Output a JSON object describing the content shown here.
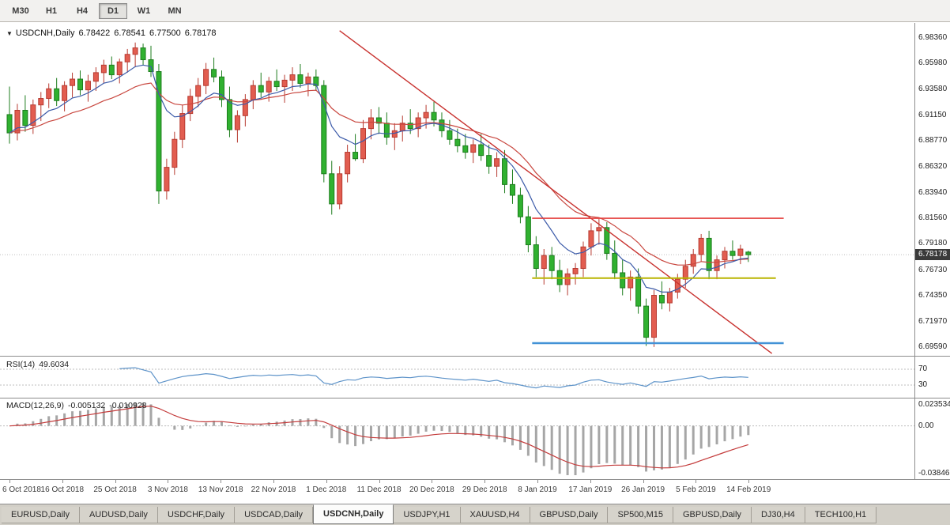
{
  "toolbar": {
    "buttons": [
      "M30",
      "H1",
      "H4",
      "D1",
      "W1",
      "MN"
    ],
    "active": "D1"
  },
  "chart_header": {
    "dropdown_icon": "▼",
    "symbol": "USDCNH,Daily",
    "open": "6.78422",
    "high": "6.78541",
    "low": "6.77500",
    "close": "6.78178"
  },
  "active_tab_index": 4,
  "tabs": [
    "EURUSD,Daily",
    "AUDUSD,Daily",
    "USDCHF,Daily",
    "USDCAD,Daily",
    "USDCNH,Daily",
    "USDJPY,H1",
    "XAUUSD,H4",
    "GBPUSD,Daily",
    "SP500,M15",
    "GBPUSD,Daily",
    "DJ30,H4",
    "TECH100,H1"
  ],
  "colors": {
    "bull": "#e25d50",
    "bull_border": "#b73b31",
    "bear": "#30b130",
    "bear_border": "#1e7d1e",
    "ma_fast": "#3c5ba9",
    "ma_slow": "#c94840",
    "trendline": "#c8322f",
    "resistance": "#e43c39",
    "support_mid": "#b9b400",
    "support_low": "#4292d6",
    "rsi_line": "#5d93c9",
    "macd_hist": "#a6a6a6",
    "macd_signal": "#c43c3c",
    "price_line": "#bdbdbd"
  },
  "chart_data": [
    {
      "type": "candlestick",
      "symbol": "USDCNH",
      "timeframe": "Daily",
      "ylim": [
        6.6878,
        6.995
      ],
      "y_ticks": [
        6.9836,
        6.9598,
        6.9358,
        6.9115,
        6.8877,
        6.8632,
        6.8394,
        6.8156,
        6.7918,
        6.7673,
        6.7435,
        6.7197,
        6.6959
      ],
      "x_labels": [
        "6 Oct 2018",
        "16 Oct 2018",
        "25 Oct 2018",
        "3 Nov 2018",
        "13 Nov 2018",
        "22 Nov 2018",
        "1 Dec 2018",
        "11 Dec 2018",
        "20 Dec 2018",
        "29 Dec 2018",
        "8 Jan 2019",
        "17 Jan 2019",
        "26 Jan 2019",
        "5 Feb 2019",
        "14 Feb 2019"
      ],
      "last_price": 6.78178,
      "last_price_label": "6.78178",
      "ohlc": [
        [
          6.912,
          6.938,
          6.885,
          6.895
        ],
        [
          6.895,
          6.922,
          6.888,
          6.916
        ],
        [
          6.916,
          6.93,
          6.896,
          6.902
        ],
        [
          6.902,
          6.926,
          6.894,
          6.921
        ],
        [
          6.921,
          6.933,
          6.906,
          6.927
        ],
        [
          6.927,
          6.941,
          6.918,
          6.936
        ],
        [
          6.936,
          6.946,
          6.92,
          6.925
        ],
        [
          6.925,
          6.943,
          6.915,
          6.939
        ],
        [
          6.939,
          6.951,
          6.928,
          6.945
        ],
        [
          6.945,
          6.953,
          6.93,
          6.935
        ],
        [
          6.935,
          6.949,
          6.924,
          6.943
        ],
        [
          6.943,
          6.956,
          6.934,
          6.951
        ],
        [
          6.951,
          6.963,
          6.941,
          6.958
        ],
        [
          6.958,
          6.966,
          6.945,
          6.949
        ],
        [
          6.949,
          6.964,
          6.941,
          6.961
        ],
        [
          6.961,
          6.973,
          6.951,
          6.968
        ],
        [
          6.968,
          6.979,
          6.956,
          6.974
        ],
        [
          6.974,
          6.978,
          6.958,
          6.963
        ],
        [
          6.963,
          6.976,
          6.947,
          6.952
        ],
        [
          6.952,
          6.959,
          6.829,
          6.841
        ],
        [
          6.841,
          6.871,
          6.833,
          6.863
        ],
        [
          6.863,
          6.896,
          6.856,
          6.889
        ],
        [
          6.889,
          6.921,
          6.881,
          6.913
        ],
        [
          6.913,
          6.936,
          6.906,
          6.929
        ],
        [
          6.929,
          6.946,
          6.919,
          6.939
        ],
        [
          6.939,
          6.96,
          6.931,
          6.954
        ],
        [
          6.954,
          6.965,
          6.942,
          6.947
        ],
        [
          6.947,
          6.953,
          6.919,
          6.926
        ],
        [
          6.926,
          6.938,
          6.891,
          6.898
        ],
        [
          6.898,
          6.916,
          6.886,
          6.911
        ],
        [
          6.911,
          6.931,
          6.901,
          6.926
        ],
        [
          6.926,
          6.944,
          6.917,
          6.939
        ],
        [
          6.939,
          6.951,
          6.928,
          6.933
        ],
        [
          6.933,
          6.947,
          6.924,
          6.943
        ],
        [
          6.943,
          6.954,
          6.934,
          6.938
        ],
        [
          6.938,
          6.949,
          6.923,
          6.944
        ],
        [
          6.944,
          6.956,
          6.934,
          6.949
        ],
        [
          6.949,
          6.959,
          6.937,
          6.941
        ],
        [
          6.941,
          6.951,
          6.929,
          6.947
        ],
        [
          6.947,
          6.954,
          6.934,
          6.939
        ],
        [
          6.939,
          6.944,
          6.849,
          6.857
        ],
        [
          6.857,
          6.869,
          6.819,
          6.829
        ],
        [
          6.829,
          6.864,
          6.824,
          6.857
        ],
        [
          6.857,
          6.884,
          6.849,
          6.877
        ],
        [
          6.877,
          6.894,
          6.869,
          6.871
        ],
        [
          6.871,
          6.907,
          6.867,
          6.899
        ],
        [
          6.899,
          6.917,
          6.889,
          6.909
        ],
        [
          6.909,
          6.919,
          6.894,
          6.904
        ],
        [
          6.904,
          6.914,
          6.884,
          6.891
        ],
        [
          6.891,
          6.904,
          6.879,
          6.897
        ],
        [
          6.897,
          6.911,
          6.887,
          6.904
        ],
        [
          6.904,
          6.917,
          6.894,
          6.899
        ],
        [
          6.899,
          6.914,
          6.891,
          6.909
        ],
        [
          6.909,
          6.921,
          6.899,
          6.914
        ],
        [
          6.914,
          6.924,
          6.901,
          6.907
        ],
        [
          6.907,
          6.914,
          6.891,
          6.897
        ],
        [
          6.897,
          6.907,
          6.884,
          6.889
        ],
        [
          6.889,
          6.899,
          6.877,
          6.883
        ],
        [
          6.883,
          6.894,
          6.871,
          6.877
        ],
        [
          6.877,
          6.889,
          6.867,
          6.884
        ],
        [
          6.884,
          6.894,
          6.869,
          6.874
        ],
        [
          6.874,
          6.884,
          6.857,
          6.864
        ],
        [
          6.864,
          6.877,
          6.854,
          6.871
        ],
        [
          6.871,
          6.879,
          6.839,
          6.847
        ],
        [
          6.847,
          6.861,
          6.829,
          6.837
        ],
        [
          6.837,
          6.844,
          6.811,
          6.817
        ],
        [
          6.817,
          6.827,
          6.784,
          6.791
        ],
        [
          6.791,
          6.799,
          6.761,
          6.769
        ],
        [
          6.769,
          6.787,
          6.754,
          6.781
        ],
        [
          6.781,
          6.789,
          6.759,
          6.767
        ],
        [
          6.767,
          6.777,
          6.747,
          6.754
        ],
        [
          6.754,
          6.769,
          6.744,
          6.764
        ],
        [
          6.764,
          6.774,
          6.754,
          6.769
        ],
        [
          6.769,
          6.794,
          6.761,
          6.789
        ],
        [
          6.789,
          6.811,
          6.781,
          6.804
        ],
        [
          6.804,
          6.815,
          6.791,
          6.807
        ],
        [
          6.807,
          6.812,
          6.777,
          6.783
        ],
        [
          6.783,
          6.795,
          6.759,
          6.765
        ],
        [
          6.765,
          6.777,
          6.744,
          6.751
        ],
        [
          6.751,
          6.767,
          6.739,
          6.761
        ],
        [
          6.761,
          6.769,
          6.727,
          6.734
        ],
        [
          6.734,
          6.741,
          6.697,
          6.705
        ],
        [
          6.705,
          6.749,
          6.696,
          6.744
        ],
        [
          6.744,
          6.757,
          6.731,
          6.737
        ],
        [
          6.737,
          6.751,
          6.729,
          6.747
        ],
        [
          6.747,
          6.764,
          6.741,
          6.759
        ],
        [
          6.759,
          6.777,
          6.751,
          6.771
        ],
        [
          6.771,
          6.787,
          6.764,
          6.782
        ],
        [
          6.782,
          6.801,
          6.775,
          6.797
        ],
        [
          6.797,
          6.804,
          6.759,
          6.767
        ],
        [
          6.767,
          6.781,
          6.759,
          6.777
        ],
        [
          6.777,
          6.789,
          6.769,
          6.785
        ],
        [
          6.785,
          6.795,
          6.777,
          6.781
        ],
        [
          6.781,
          6.791,
          6.773,
          6.787
        ],
        [
          6.78422,
          6.78541,
          6.775,
          6.78178
        ]
      ],
      "overlays": {
        "moving_averages": [
          {
            "kind": "ema",
            "period": 8,
            "color_key": "ma_fast"
          },
          {
            "kind": "ema",
            "period": 20,
            "color_key": "ma_slow"
          }
        ],
        "trendline": {
          "from_bar": 42,
          "from_price": 6.99,
          "to_bar": 97,
          "to_price": 6.69,
          "color_key": "trendline"
        },
        "hlines": [
          {
            "price": 6.8156,
            "from_bar": 66.5,
            "to_bar": 98.5,
            "color_key": "resistance",
            "width": 1.6
          },
          {
            "price": 6.76,
            "from_bar": 66.5,
            "to_bar": 97.5,
            "color_key": "support_mid",
            "width": 2
          },
          {
            "price": 6.6996,
            "from_bar": 66.5,
            "to_bar": 98.5,
            "color_key": "support_low",
            "width": 2.5
          }
        ]
      }
    },
    {
      "type": "line",
      "indicator": "RSI",
      "period": 14,
      "name_label": "RSI(14)",
      "value_label": "49.6034",
      "current_value": 49.6034,
      "range": [
        0,
        100
      ],
      "levels": [
        70,
        30
      ],
      "derived_from": "ohlc closes",
      "line_color_key": "rsi_line"
    },
    {
      "type": "macd",
      "indicator": "MACD",
      "fast_period": 12,
      "slow_period": 26,
      "signal_period": 9,
      "name_label": "MACD(12,26,9)",
      "macd_value_label": "-0.005132",
      "signal_value_label": "-0.010928",
      "current_macd": -0.005132,
      "current_signal": -0.010928,
      "axis_labels": [
        "0.023534",
        "0.00",
        "-0.038466"
      ],
      "range": [
        -0.038466,
        0.023534
      ],
      "derived_from": "ohlc closes"
    }
  ]
}
